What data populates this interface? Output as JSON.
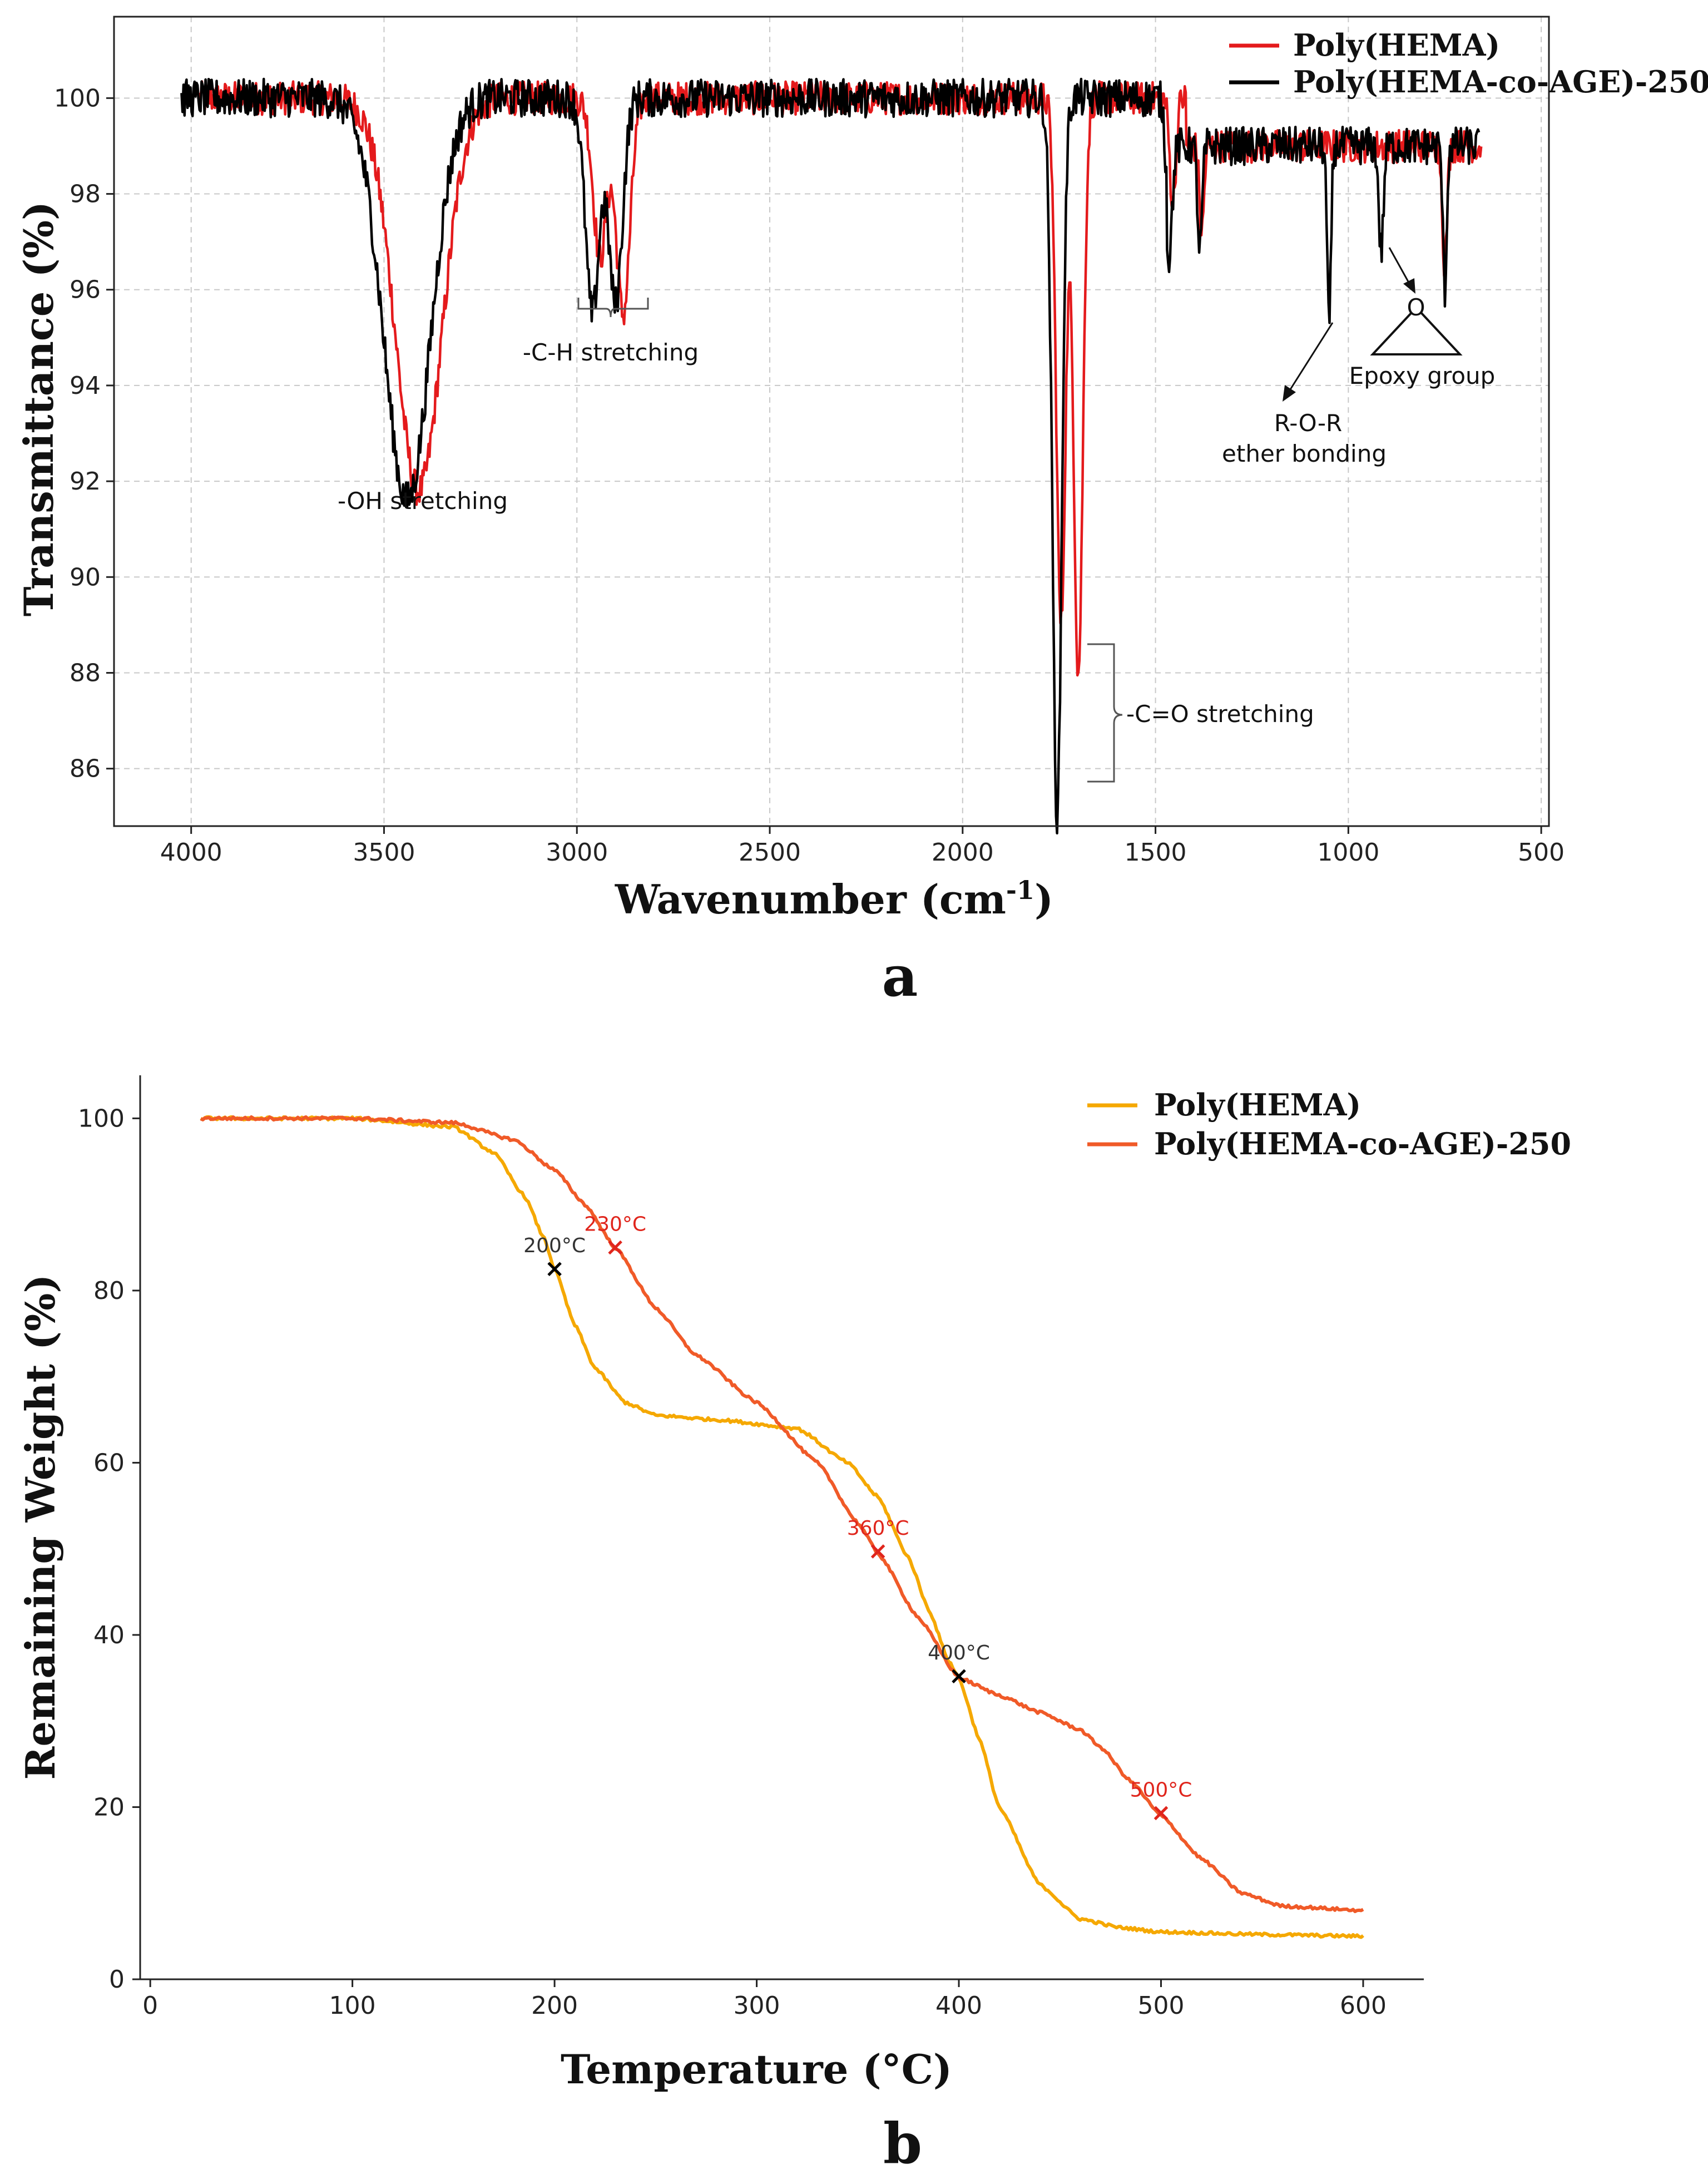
{
  "chart_data": [
    {
      "id": "a",
      "type": "line",
      "panel_label": "a",
      "xlabel": "Wavenumber (cm",
      "xlabel_sup": "-1",
      "xlabel_end": ")",
      "ylabel": "Transmittance (%)",
      "xlim": [
        4200,
        480
      ],
      "ylim": [
        84.8,
        101.7
      ],
      "xticks": [
        4000,
        3500,
        3000,
        2500,
        2000,
        1500,
        1000,
        500
      ],
      "yticks": [
        86,
        88,
        90,
        92,
        94,
        96,
        98,
        100
      ],
      "grid": true,
      "legend_position": "top-right",
      "series": [
        {
          "name": "Poly(HEMA)",
          "color": "#e41a1c",
          "baseline_segments": [
            [
              3980,
              1420,
              100.0
            ],
            [
              1420,
              655,
              99.0
            ]
          ],
          "dips": [
            {
              "center": 3410,
              "width": 60,
              "depth": 8.2
            },
            {
              "center": 2940,
              "width": 18,
              "depth": 3.3
            },
            {
              "center": 2880,
              "width": 18,
              "depth": 4.5
            },
            {
              "center": 1745,
              "width": 12,
              "depth": 11.0
            },
            {
              "center": 1700,
              "width": 12,
              "depth": 12.0
            },
            {
              "center": 1455,
              "width": 8,
              "depth": 2.2
            },
            {
              "center": 1380,
              "width": 6,
              "depth": 1.8
            },
            {
              "center": 750,
              "width": 6,
              "depth": 2.5
            }
          ],
          "noise": 0.35
        },
        {
          "name": "Poly(HEMA-co-AGE)-250",
          "color": "#000000",
          "baseline_segments": [
            [
              4025,
              1470,
              100.0
            ],
            [
              1470,
              660,
              99.0
            ]
          ],
          "dips": [
            {
              "center": 3440,
              "width": 60,
              "depth": 8.4
            },
            {
              "center": 2960,
              "width": 18,
              "depth": 4.5
            },
            {
              "center": 2900,
              "width": 18,
              "depth": 4.3
            },
            {
              "center": 1755,
              "width": 12,
              "depth": 15.0
            },
            {
              "center": 1465,
              "width": 8,
              "depth": 2.3
            },
            {
              "center": 1385,
              "width": 6,
              "depth": 2.2
            },
            {
              "center": 1050,
              "width": 5,
              "depth": 3.8
            },
            {
              "center": 915,
              "width": 6,
              "depth": 2.2
            },
            {
              "center": 750,
              "width": 5,
              "depth": 3.0
            }
          ],
          "noise": 0.4
        }
      ],
      "annotations": {
        "oh": "-OH stretching",
        "ch": "-C-H stretching",
        "co": "-C=O stretching",
        "ror_1": "R-O-R",
        "ror_2": "ether bonding",
        "epoxy": "Epoxy group",
        "epoxy_atom": "O"
      }
    },
    {
      "id": "b",
      "type": "line",
      "panel_label": "b",
      "xlabel": "Temperature (°C)",
      "ylabel": "Remaining Weight (%)",
      "xlim": [
        -5,
        630
      ],
      "ylim": [
        0,
        105
      ],
      "xticks": [
        0,
        100,
        200,
        300,
        400,
        500,
        600
      ],
      "yticks": [
        0,
        20,
        40,
        60,
        80,
        100
      ],
      "grid": false,
      "legend_position": "top-right",
      "series": [
        {
          "name": "Poly(HEMA)",
          "color": "#f5a800",
          "x": [
            25,
            100,
            150,
            170,
            185,
            195,
            200,
            210,
            220,
            235,
            250,
            280,
            320,
            345,
            360,
            375,
            385,
            395,
            400,
            410,
            420,
            440,
            460,
            480,
            500,
            550,
            600
          ],
          "y": [
            100,
            100,
            99,
            96,
            91,
            86,
            82.5,
            76,
            71,
            67,
            65.5,
            65,
            64,
            60,
            56,
            49,
            43,
            37,
            35,
            28,
            20,
            11,
            7,
            6,
            5.5,
            5.2,
            5.0
          ]
        },
        {
          "name": "Poly(HEMA-co-AGE)-250",
          "color": "#f05a28",
          "x": [
            25,
            100,
            150,
            180,
            200,
            215,
            230,
            250,
            270,
            300,
            330,
            350,
            360,
            380,
            400,
            420,
            440,
            460,
            470,
            485,
            500,
            520,
            540,
            560,
            600
          ],
          "y": [
            100,
            100,
            99.5,
            97.5,
            94,
            90,
            85,
            78,
            72.5,
            67,
            60,
            53,
            49.5,
            42,
            35,
            33,
            31,
            29,
            27,
            23,
            19,
            14,
            10,
            8.5,
            8.0
          ]
        }
      ],
      "markers": [
        {
          "x": 200,
          "y": 82.5,
          "label": "200°C",
          "color": "#000000",
          "label_color": "#333333"
        },
        {
          "x": 230,
          "y": 85,
          "label": "230°C",
          "color": "#e0251c",
          "label_color": "#e0251c"
        },
        {
          "x": 360,
          "y": 49.7,
          "label": "360°C",
          "color": "#e0251c",
          "label_color": "#e0251c"
        },
        {
          "x": 400,
          "y": 35.2,
          "label": "400°C",
          "color": "#000000",
          "label_color": "#333333"
        },
        {
          "x": 500,
          "y": 19.3,
          "label": "500°C",
          "color": "#e0251c",
          "label_color": "#e0251c"
        }
      ]
    }
  ]
}
